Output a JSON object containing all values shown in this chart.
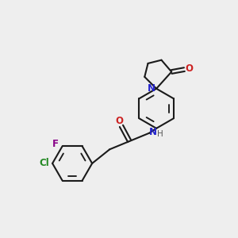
{
  "background_color": "#eeeeee",
  "bond_color": "#1a1a1a",
  "N_color": "#2222cc",
  "O_color": "#cc2222",
  "F_color": "#880088",
  "Cl_color": "#228822",
  "H_color": "#555555",
  "line_width": 1.5,
  "font_size": 8.5,
  "fig_w": 3.0,
  "fig_h": 3.0,
  "dpi": 100,
  "xlim": [
    0,
    10
  ],
  "ylim": [
    0,
    10
  ]
}
